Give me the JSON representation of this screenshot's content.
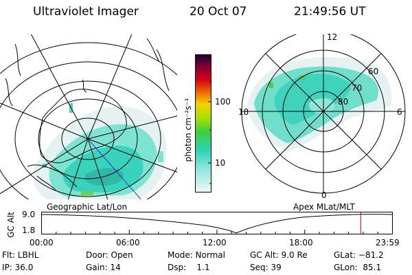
{
  "header": {
    "instrument": "Ultraviolet Imager",
    "date": "20 Oct 07",
    "time": "21:49:56 UT"
  },
  "panels": {
    "left_label": "Geographic Lat/Lon",
    "right_label": "Apex MLat/MLT"
  },
  "colorbar": {
    "unit_label": "photon cm⁻²s⁻¹",
    "ticks": [
      "100",
      "10"
    ],
    "scale": "log"
  },
  "polar_right": {
    "mlt_labels": [
      "12",
      "18",
      "6",
      "0"
    ],
    "mlat_labels": [
      "60",
      "70",
      "80"
    ]
  },
  "timeline": {
    "ylabel": "GC Alt",
    "yticks": [
      "9.0",
      "1.8"
    ],
    "xticks": [
      "00:00",
      "06:00",
      "12:00",
      "18:00",
      "23:59"
    ],
    "marker_time": "21:50",
    "marker_color": "#cc0000"
  },
  "info": {
    "r1c1": "Flt: LBHL",
    "r1c2": "Door: Open",
    "r1c3": "Mode: Normal",
    "r1c4": "GC Alt: 9.0 Re",
    "r1c5": "GLat: −81.2",
    "r2c1": "IP: 36.0",
    "r2c2": "Gain: 14",
    "r2c3": "Dsp:    1.1",
    "r2c4": "Seq: 39",
    "r2c5": "GLon:  85.1"
  }
}
